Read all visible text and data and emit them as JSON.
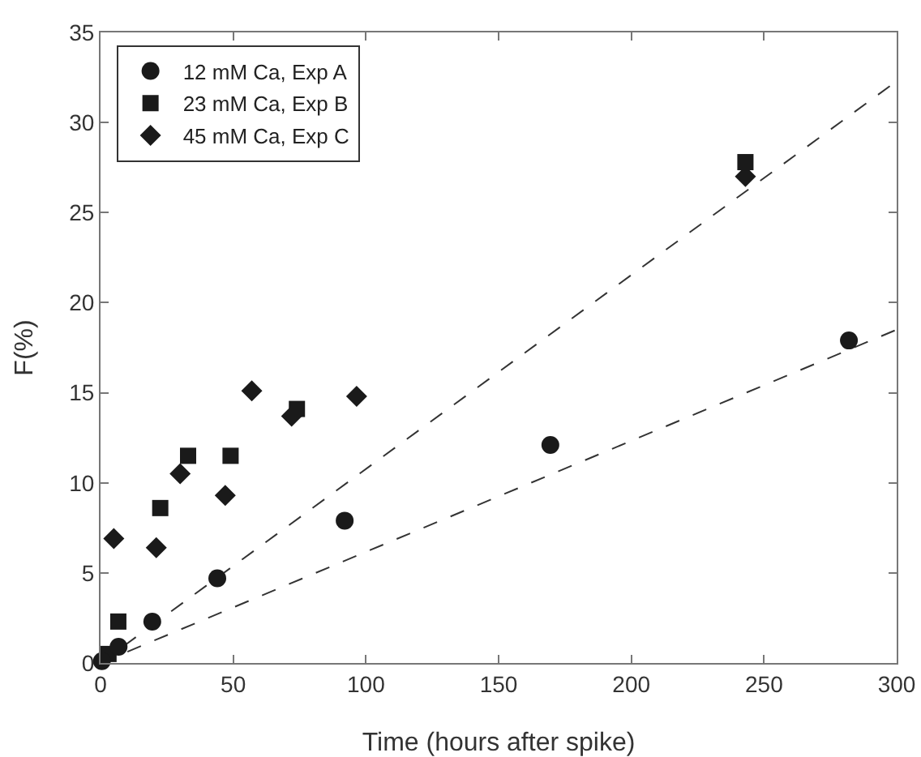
{
  "chart_data": {
    "type": "scatter",
    "xlabel": "Time (hours after spike)",
    "ylabel": "F(%)",
    "xlim": [
      0,
      300
    ],
    "ylim": [
      0,
      35
    ],
    "xticks": [
      0,
      50,
      100,
      150,
      200,
      250,
      300
    ],
    "yticks": [
      0,
      5,
      10,
      15,
      20,
      25,
      30,
      35
    ],
    "grid": false,
    "legend": "top left",
    "series": [
      {
        "name": "12 mM Ca, Exp A",
        "color": "#1a1a1a",
        "marker": "circle",
        "x": [
          0.5,
          6.8,
          19.5,
          44,
          92,
          169.5,
          282
        ],
        "values": [
          0.1,
          0.9,
          2.3,
          4.7,
          7.9,
          12.1,
          17.9
        ]
      },
      {
        "name": "23 mM Ca, Exp B",
        "color": "#1a1a1a",
        "marker": "square",
        "x": [
          3,
          6.7,
          22.5,
          33,
          49,
          74,
          243
        ],
        "values": [
          0.5,
          2.3,
          8.6,
          11.5,
          11.5,
          14.1,
          27.8
        ]
      },
      {
        "name": "45 mM Ca, Exp C",
        "color": "#1a1a1a",
        "marker": "diamond",
        "x": [
          5,
          21,
          30,
          47,
          57,
          72,
          96.5,
          243
        ],
        "values": [
          6.9,
          6.4,
          10.5,
          9.3,
          15.1,
          13.7,
          14.8,
          27
        ]
      },
      {
        "type": "line",
        "color": "#333333",
        "line_style": "dashed",
        "marker": "none",
        "x": [
          0,
          300
        ],
        "values": [
          0,
          32.3
        ]
      },
      {
        "type": "line",
        "color": "#333333",
        "line_style": "dashed",
        "marker": "none",
        "x": [
          0,
          300
        ],
        "values": [
          0,
          18.5
        ]
      }
    ]
  }
}
